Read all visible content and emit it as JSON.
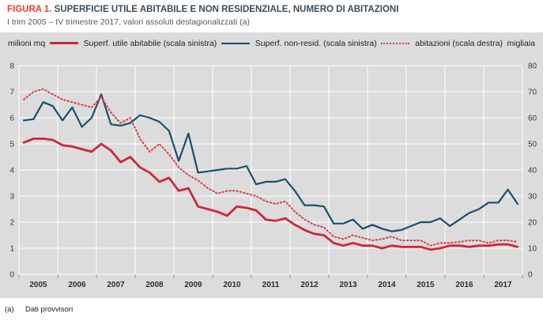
{
  "title": {
    "figure_label": "FIGURA 1.",
    "text": "SUPERFICIE UTILE ABITABILE E NON RESIDENZIALE, NUMERO DI ABITAZIONI"
  },
  "subtitle": "I trim 2005 – IV trimestre 2017, valori assoluti destagionalizzati (a)",
  "footnote": {
    "marker": "(a)",
    "text": "Dati provvisori"
  },
  "axes": {
    "left_unit": "milioni mq",
    "right_unit": "migliaia",
    "left_ticks": [
      8,
      7,
      6,
      5,
      4,
      3,
      2,
      1,
      0
    ],
    "right_ticks": [
      80,
      70,
      60,
      50,
      40,
      30,
      20,
      10,
      0
    ]
  },
  "legend": [
    {
      "id": "abitabile",
      "label": "Superf. utile abitabile (scala sinistra)",
      "swatch": "solid-red"
    },
    {
      "id": "nonresid",
      "label": "Superf. non-resid. (scala sinistra)",
      "swatch": "solid-blue"
    },
    {
      "id": "abitazioni",
      "label": "abitazioni (scala destra)",
      "swatch": "dotted-red"
    }
  ],
  "colors": {
    "figure_label": "#e8402c",
    "title_text": "#3d4c57",
    "subtitle_text": "#595959",
    "panel_bg": "#dcdcdc",
    "gridline": "#ffffff",
    "axis_tick": "#9a9a9a",
    "series_red": "#ce2639",
    "series_blue": "#1b4f6b",
    "series_dotted_red": "#d8404f"
  },
  "chart_data": {
    "type": "line",
    "x_frequency": "quarterly",
    "x_range": "2005-Q1 to 2017-Q4",
    "x_years": [
      "2005",
      "2006",
      "2007",
      "2008",
      "2009",
      "2010",
      "2011",
      "2012",
      "2013",
      "2014",
      "2015",
      "2016",
      "2017"
    ],
    "ylim_left": [
      0,
      8
    ],
    "ylim_right": [
      0,
      80
    ],
    "ylabel_left": "milioni mq",
    "ylabel_right": "migliaia",
    "grid": true,
    "legend_position": "top",
    "series": [
      {
        "id": "abitabile",
        "name": "Superf. utile abitabile (scala sinistra)",
        "scale": "left",
        "color": "#ce2639",
        "width": 2.8,
        "dash": null,
        "values": [
          5.05,
          5.2,
          5.2,
          5.15,
          4.95,
          4.9,
          4.8,
          4.7,
          5.0,
          4.75,
          4.3,
          4.5,
          4.1,
          3.9,
          3.55,
          3.7,
          3.2,
          3.3,
          2.6,
          2.5,
          2.4,
          2.25,
          2.6,
          2.55,
          2.45,
          2.1,
          2.05,
          2.15,
          1.9,
          1.7,
          1.55,
          1.5,
          1.2,
          1.1,
          1.2,
          1.1,
          1.1,
          1.0,
          1.1,
          1.05,
          1.05,
          1.05,
          0.95,
          1.0,
          1.1,
          1.1,
          1.05,
          1.1,
          1.1,
          1.15,
          1.15,
          1.05
        ]
      },
      {
        "id": "nonresid",
        "name": "Superf. non-resid. (scala sinistra)",
        "scale": "left",
        "color": "#1b4f6b",
        "width": 2.2,
        "dash": null,
        "values": [
          5.9,
          5.95,
          6.6,
          6.45,
          5.9,
          6.4,
          5.65,
          6.0,
          6.9,
          5.75,
          5.7,
          5.8,
          6.1,
          6.0,
          5.85,
          5.5,
          4.35,
          5.4,
          3.9,
          3.95,
          4.0,
          4.05,
          4.05,
          4.15,
          3.45,
          3.55,
          3.55,
          3.65,
          3.2,
          2.65,
          2.65,
          2.6,
          1.95,
          1.95,
          2.1,
          1.75,
          1.9,
          1.75,
          1.65,
          1.7,
          1.85,
          2.0,
          2.0,
          2.15,
          1.85,
          2.1,
          2.35,
          2.5,
          2.75,
          2.75,
          3.25,
          2.7
        ]
      },
      {
        "id": "abitazioni",
        "name": "abitazioni (scala destra)",
        "scale": "right",
        "color": "#d8404f",
        "width": 2,
        "dash": "1.5 3",
        "values": [
          67,
          70,
          71,
          69,
          67,
          66,
          65,
          64,
          68,
          62,
          58,
          60,
          52,
          47,
          50,
          46,
          41,
          38,
          36,
          33,
          31,
          32,
          32,
          31,
          30,
          28,
          27,
          28,
          24,
          21,
          19,
          18,
          14.5,
          13.5,
          15,
          14,
          13,
          13.5,
          14.5,
          13,
          13,
          13,
          11,
          12,
          12,
          12.5,
          13,
          13,
          12,
          13,
          13,
          12.5
        ]
      }
    ]
  }
}
